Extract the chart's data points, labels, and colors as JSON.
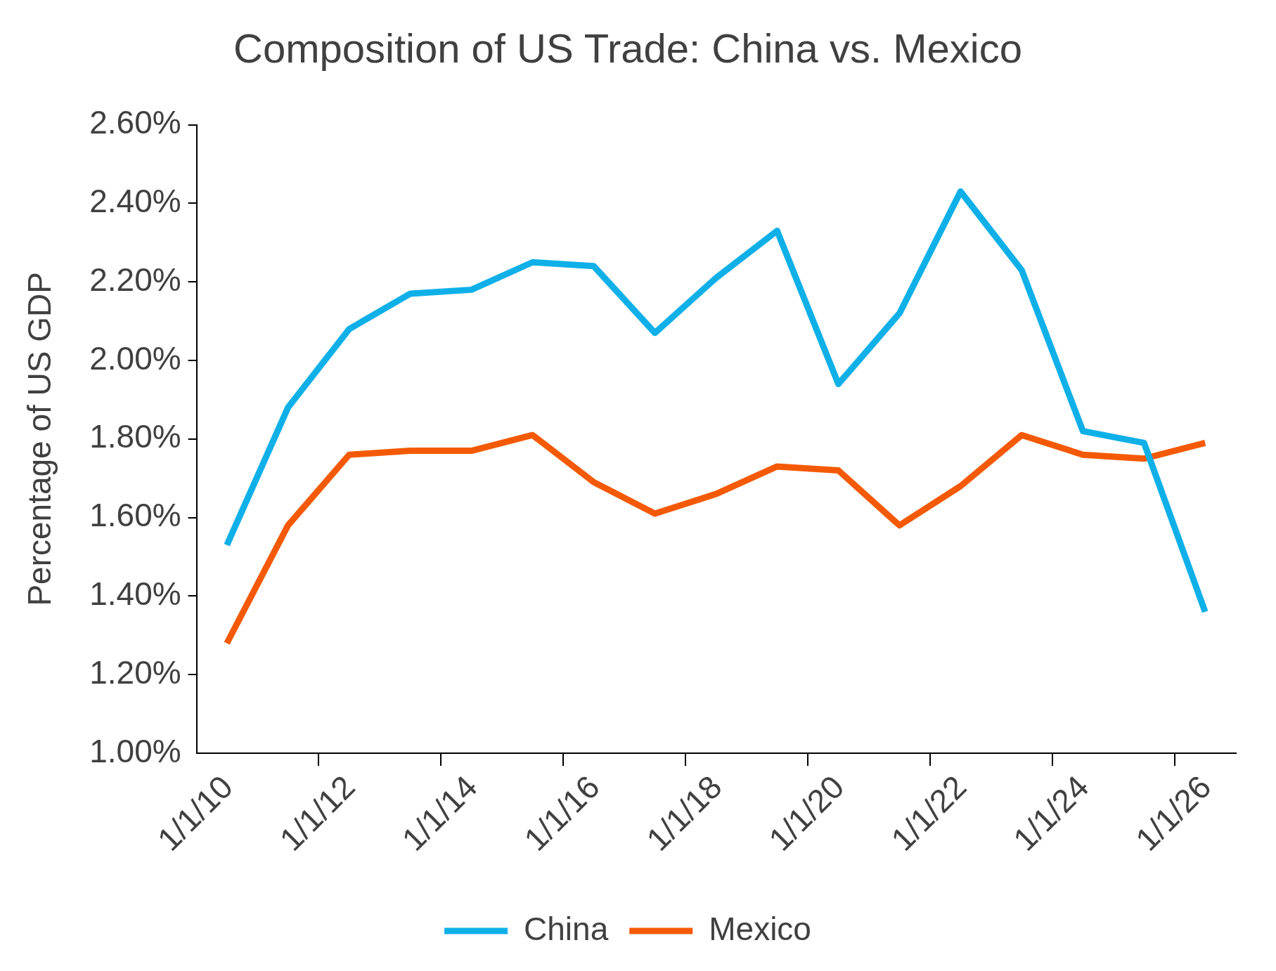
{
  "chart_data": {
    "type": "line",
    "title": "Composition of US Trade: China vs. Mexico",
    "ylabel": "Percentage of US GDP",
    "x": [
      "2010-07-01",
      "2011-07-01",
      "2012-07-01",
      "2013-07-01",
      "2014-07-01",
      "2015-07-01",
      "2016-07-01",
      "2017-07-01",
      "2018-07-01",
      "2019-07-01",
      "2020-07-01",
      "2021-07-01",
      "2022-07-01",
      "2023-07-01",
      "2024-07-01",
      "2025-07-01",
      "2026-07-01"
    ],
    "series": [
      {
        "name": "China",
        "color": "#0fb0e8",
        "values": [
          1.53,
          1.88,
          2.08,
          2.17,
          2.18,
          2.25,
          2.24,
          2.07,
          2.21,
          2.33,
          1.94,
          2.12,
          2.43,
          2.23,
          1.82,
          1.79,
          1.36
        ]
      },
      {
        "name": "Mexico",
        "color": "#f45a06",
        "values": [
          1.28,
          1.58,
          1.76,
          1.77,
          1.77,
          1.81,
          1.69,
          1.61,
          1.66,
          1.73,
          1.72,
          1.58,
          1.68,
          1.81,
          1.76,
          1.75,
          1.79
        ]
      }
    ],
    "xlim": [
      "2010-01-01",
      "2027-01-01"
    ],
    "xticks": [
      {
        "value": "2010-01-01",
        "label": "1/1/10"
      },
      {
        "value": "2012-01-01",
        "label": "1/1/12"
      },
      {
        "value": "2014-01-01",
        "label": "1/1/14"
      },
      {
        "value": "2016-01-01",
        "label": "1/1/16"
      },
      {
        "value": "2018-01-01",
        "label": "1/1/18"
      },
      {
        "value": "2020-01-01",
        "label": "1/1/20"
      },
      {
        "value": "2022-01-01",
        "label": "1/1/22"
      },
      {
        "value": "2024-01-01",
        "label": "1/1/24"
      },
      {
        "value": "2026-01-01",
        "label": "1/1/26"
      }
    ],
    "ylim": [
      1.0,
      2.6
    ],
    "yticks": [
      {
        "value": 1.0,
        "label": "1.00%"
      },
      {
        "value": 1.2,
        "label": "1.20%"
      },
      {
        "value": 1.4,
        "label": "1.40%"
      },
      {
        "value": 1.6,
        "label": "1.60%"
      },
      {
        "value": 1.8,
        "label": "1.80%"
      },
      {
        "value": 2.0,
        "label": "2.00%"
      },
      {
        "value": 2.2,
        "label": "2.20%"
      },
      {
        "value": 2.4,
        "label": "2.40%"
      },
      {
        "value": 2.6,
        "label": "2.60%"
      }
    ],
    "legend": "bottom"
  }
}
